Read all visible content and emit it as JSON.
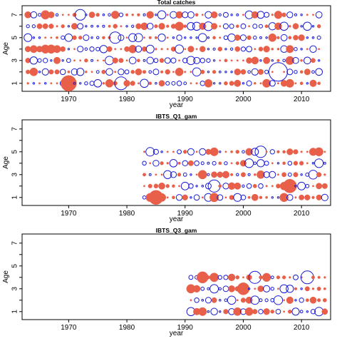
{
  "chart_data": [
    {
      "type": "scatter",
      "title": "Total catches",
      "xlabel": "year",
      "ylabel": "Age",
      "xlim": [
        1962,
        2015
      ],
      "ylim": [
        0.3,
        7.8
      ],
      "x_ticks": [
        1970,
        1980,
        1990,
        2000,
        2010
      ],
      "y_ticks": [
        1,
        3,
        5,
        7
      ],
      "ages": [
        1,
        2,
        3,
        4,
        5,
        6,
        7
      ],
      "years": [
        1963,
        2013
      ],
      "marker_encoding": "bubble area = residual size; filled red = positive, open blue = negative",
      "colors": {
        "positive": "#e8604a",
        "negative": "#1a1ad6"
      },
      "highlights": [
        {
          "year": 1970,
          "age": 1,
          "size": 2.2,
          "sign": "positive"
        },
        {
          "year": 1979,
          "age": 1,
          "size": 1.8,
          "sign": "negative"
        },
        {
          "year": 2006,
          "age": 2,
          "size": 2.6,
          "sign": "negative"
        },
        {
          "year": 1978,
          "age": 5,
          "size": 1.6,
          "sign": "negative"
        },
        {
          "year": 1972,
          "age": 7,
          "size": 1.5,
          "sign": "negative"
        }
      ]
    },
    {
      "type": "scatter",
      "title": "IBTS_Q1_gam",
      "xlabel": "year",
      "ylabel": "Age",
      "xlim": [
        1962,
        2015
      ],
      "ylim": [
        0.3,
        7.8
      ],
      "x_ticks": [
        1970,
        1980,
        1990,
        2000,
        2010
      ],
      "y_ticks": [
        1,
        3,
        5,
        7
      ],
      "ages": [
        1,
        2,
        3,
        4,
        5
      ],
      "years": [
        1983,
        2014
      ],
      "marker_encoding": "bubble area = residual size; filled red = positive, open blue = negative",
      "colors": {
        "positive": "#e8604a",
        "negative": "#1a1ad6"
      },
      "highlights": [
        {
          "year": 1985,
          "age": 1,
          "size": 2.0,
          "sign": "positive"
        },
        {
          "year": 1995,
          "age": 2,
          "size": 1.7,
          "sign": "negative"
        },
        {
          "year": 2003,
          "age": 5,
          "size": 1.6,
          "sign": "negative"
        },
        {
          "year": 2008,
          "age": 2,
          "size": 1.9,
          "sign": "positive"
        }
      ]
    },
    {
      "type": "scatter",
      "title": "IBTS_Q3_gam",
      "xlabel": "year",
      "ylabel": "Age",
      "xlim": [
        1962,
        2015
      ],
      "ylim": [
        0.3,
        7.8
      ],
      "x_ticks": [
        1970,
        1980,
        1990,
        2000,
        2010
      ],
      "y_ticks": [
        1,
        3,
        5,
        7
      ],
      "ages": [
        1,
        2,
        3,
        4
      ],
      "years": [
        1991,
        2014
      ],
      "marker_encoding": "bubble area = residual size; filled red = positive, open blue = negative",
      "colors": {
        "positive": "#e8604a",
        "negative": "#1a1ad6"
      },
      "highlights": [
        {
          "year": 2002,
          "age": 4,
          "size": 1.7,
          "sign": "negative"
        },
        {
          "year": 2011,
          "age": 4,
          "size": 1.8,
          "sign": "negative"
        },
        {
          "year": 1993,
          "age": 4,
          "size": 1.6,
          "sign": "positive"
        },
        {
          "year": 2000,
          "age": 3,
          "size": 1.7,
          "sign": "positive"
        }
      ]
    }
  ]
}
